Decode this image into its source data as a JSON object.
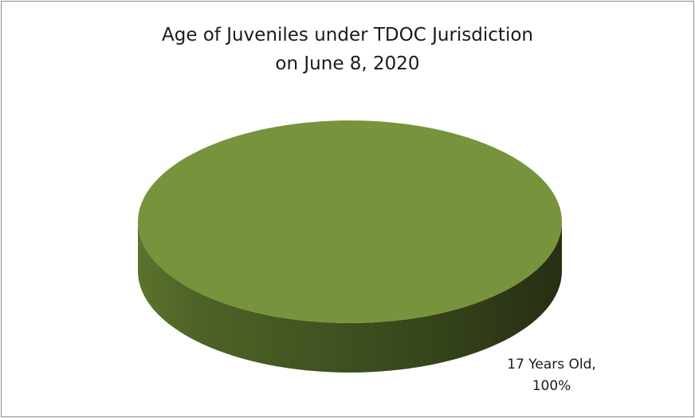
{
  "chart_data": {
    "type": "pie",
    "title_lines": [
      "Age of Juveniles under TDOC Jurisdiction",
      "on June 8, 2020"
    ],
    "slices": [
      {
        "label": "17 Years Old",
        "value": 100,
        "percent_label": "100%",
        "color": "#77933c"
      }
    ],
    "data_label_lines": [
      "17 Years Old,",
      "100%"
    ],
    "legend": "none",
    "style": "3d-pie"
  }
}
